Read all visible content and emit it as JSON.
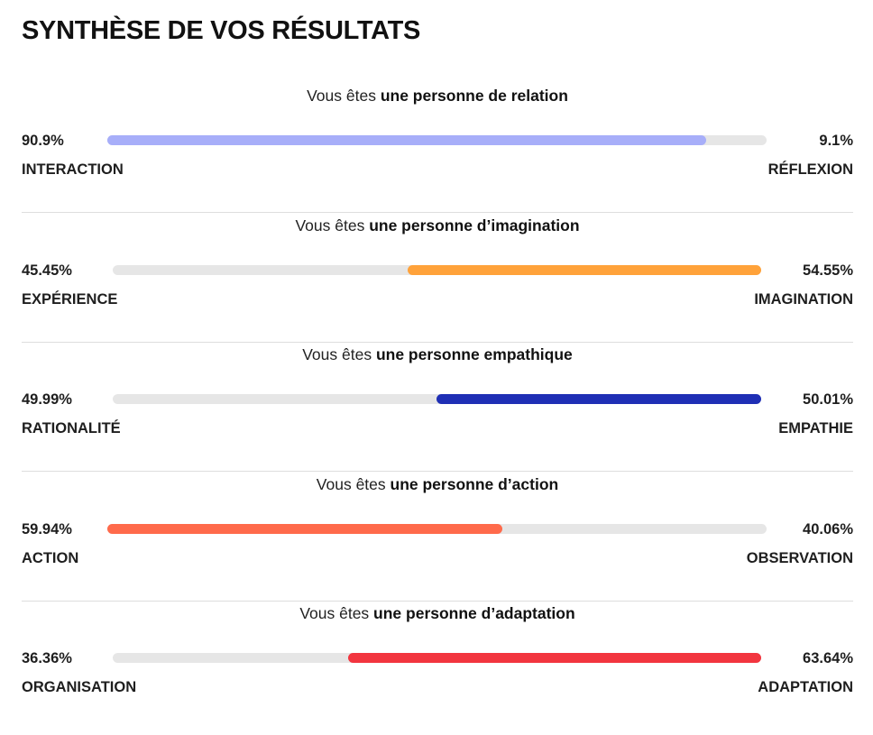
{
  "title": "SYNTHÈSE DE VOS RÉSULTATS",
  "headline_prefix": "Vous êtes ",
  "traits": [
    {
      "headline_bold": "une personne de relation",
      "left_percent": "90.9%",
      "right_percent": "9.1%",
      "left_label": "INTERACTION",
      "right_label": "RÉFLEXION",
      "dominant_side": "left",
      "dominant_value": 90.9,
      "color": "#a7aef9"
    },
    {
      "headline_bold": "une personne d’imagination",
      "left_percent": "45.45%",
      "right_percent": "54.55%",
      "left_label": "EXPÉRIENCE",
      "right_label": "IMAGINATION",
      "dominant_side": "right",
      "dominant_value": 54.55,
      "color": "#ffa23a"
    },
    {
      "headline_bold": "une personne empathique",
      "left_percent": "49.99%",
      "right_percent": "50.01%",
      "left_label": "RATIONALITÉ",
      "right_label": "EMPATHIE",
      "dominant_side": "right",
      "dominant_value": 50.01,
      "color": "#1f2fb5"
    },
    {
      "headline_bold": "une personne d’action",
      "left_percent": "59.94%",
      "right_percent": "40.06%",
      "left_label": "ACTION",
      "right_label": "OBSERVATION",
      "dominant_side": "left",
      "dominant_value": 59.94,
      "color": "#ff6a4b"
    },
    {
      "headline_bold": "une personne d’adaptation",
      "left_percent": "36.36%",
      "right_percent": "63.64%",
      "left_label": "ORGANISATION",
      "right_label": "ADAPTATION",
      "dominant_side": "right",
      "dominant_value": 63.64,
      "color": "#f2353f"
    }
  ],
  "colors": {
    "track": "#e6e6e6",
    "divider": "#dedede",
    "text": "#1e1e1e"
  }
}
